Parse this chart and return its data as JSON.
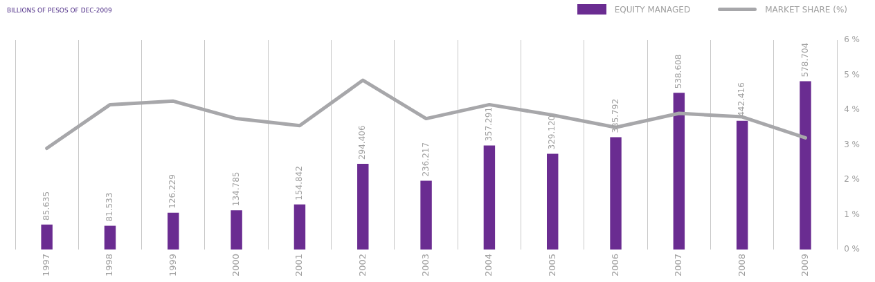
{
  "chart_data": {
    "type": "bar",
    "subtitle": "BILLIONS OF PESOS OF DEC-2009",
    "categories": [
      "1997",
      "1998",
      "1999",
      "2000",
      "2001",
      "2002",
      "2003",
      "2004",
      "2005",
      "2006",
      "2007",
      "2008",
      "2009"
    ],
    "series": [
      {
        "name": "EQUITY MANAGED",
        "color": "#6a2c91",
        "values": [
          85.635,
          81.533,
          126.229,
          134.785,
          154.842,
          294.406,
          236.217,
          357.291,
          329.12,
          385.792,
          538.608,
          442.416,
          578.704
        ],
        "value_labels": [
          "85.635",
          "81.533",
          "126.229",
          "134.785",
          "154.842",
          "294.406",
          "236.217",
          "357.291",
          "329.120",
          "385.792",
          "538.608",
          "442.416",
          "578.704"
        ]
      },
      {
        "name": "MARKET SHARE (%)",
        "type": "line",
        "axis": "y2",
        "color": "#a7a7aa",
        "values": [
          2.9,
          4.15,
          4.25,
          3.75,
          3.55,
          4.85,
          3.75,
          4.15,
          3.85,
          3.5,
          3.9,
          3.8,
          3.2
        ]
      }
    ],
    "ylim": [
      0,
      720
    ],
    "y2lim": [
      0,
      6
    ],
    "y2ticks": [
      {
        "value": 0,
        "label": "0 %"
      },
      {
        "value": 1,
        "label": "1 %"
      },
      {
        "value": 2,
        "label": "2 %"
      },
      {
        "value": 3,
        "label": "3 %"
      },
      {
        "value": 4,
        "label": "4 %"
      },
      {
        "value": 5,
        "label": "5 %"
      },
      {
        "value": 6,
        "label": "6 %"
      }
    ],
    "grid": "x",
    "legend": "top right",
    "marker": "none"
  }
}
